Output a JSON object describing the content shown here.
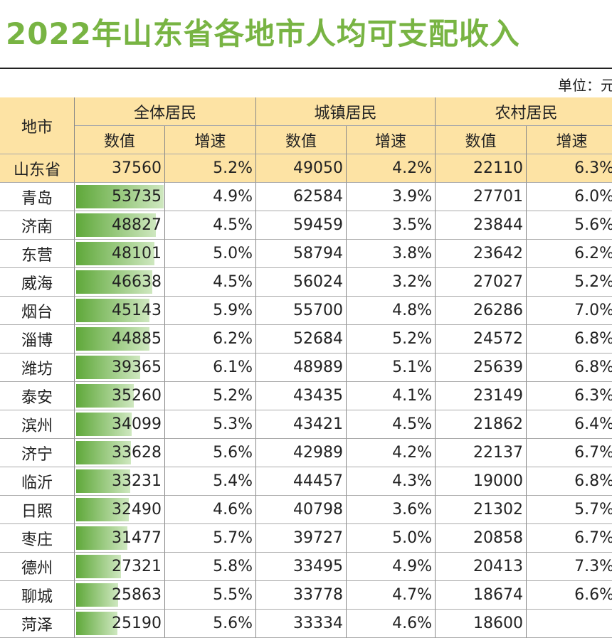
{
  "title": "2022年山东省各地市人均可支配收入",
  "unit": "单位：元",
  "table": {
    "header_row1": [
      "地市",
      "全体居民",
      "城镇居民",
      "农村居民"
    ],
    "header_row2": [
      "数值",
      "增速",
      "数值",
      "增速",
      "数值",
      "增速"
    ],
    "rows": [
      [
        "山东省",
        37560,
        "5.2%",
        49050,
        "4.2%",
        22110,
        "6.3%"
      ],
      [
        "青岛",
        53735,
        "4.9%",
        62584,
        "3.9%",
        27701,
        "6.0%"
      ],
      [
        "济南",
        48827,
        "4.5%",
        59459,
        "3.5%",
        23844,
        "5.6%"
      ],
      [
        "东营",
        48101,
        "5.0%",
        58794,
        "3.8%",
        23642,
        "6.2%"
      ],
      [
        "威海",
        46638,
        "4.5%",
        56024,
        "3.2%",
        27027,
        "5.2%"
      ],
      [
        "烟台",
        45143,
        "5.9%",
        55700,
        "4.8%",
        26286,
        "7.0%"
      ],
      [
        "淄博",
        44885,
        "6.2%",
        52684,
        "5.2%",
        24572,
        "6.8%"
      ],
      [
        "潍坊",
        39365,
        "6.1%",
        48989,
        "5.1%",
        25639,
        "6.8%"
      ],
      [
        "泰安",
        35260,
        "5.2%",
        43435,
        "4.1%",
        23149,
        "6.3%"
      ],
      [
        "滨州",
        34099,
        "5.3%",
        43421,
        "4.5%",
        21862,
        "6.4%"
      ],
      [
        "济宁",
        33628,
        "5.6%",
        42989,
        "4.2%",
        22137,
        "6.7%"
      ],
      [
        "临沂",
        33231,
        "5.4%",
        44457,
        "4.3%",
        19000,
        "6.8%"
      ],
      [
        "日照",
        32490,
        "4.6%",
        40798,
        "3.6%",
        21302,
        "5.7%"
      ],
      [
        "枣庄",
        31477,
        "5.7%",
        39727,
        "5.0%",
        20858,
        "6.7%"
      ],
      [
        "德州",
        27321,
        "5.8%",
        33495,
        "4.9%",
        20413,
        "7.3%"
      ],
      [
        "聊城",
        25863,
        "5.5%",
        33778,
        "4.7%",
        18674,
        "6.6%"
      ],
      [
        "菏泽",
        25190,
        "5.6%",
        33334,
        "4.6%",
        18600,
        null
      ]
    ]
  }
}
